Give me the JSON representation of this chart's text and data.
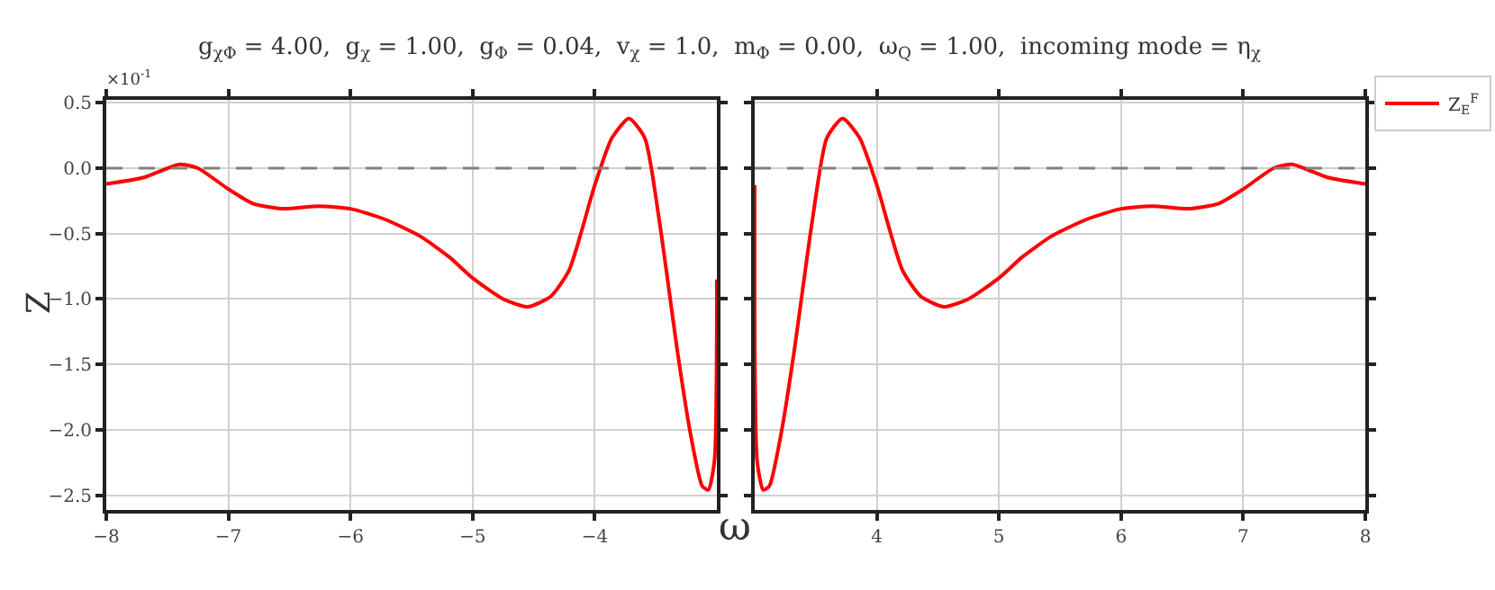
{
  "chart_data": [
    {
      "type": "line",
      "title": "g$_{χΦ}$ = 4.00,  g$_{χ}$ = 1.00,  g$_{Φ}$ = 0.04,  v$_{χ}$ = 1.0,  m$_{Φ}$ = 0.00,  ω$_{Q}$ = 1.00,  incoming mode = η$_{χ}$",
      "xlabel": "ω",
      "ylabel": "Z",
      "annotations": [
        "×10$^{-1}$"
      ],
      "x": [
        -8.0,
        -7.69,
        -7.4,
        -7.25,
        -7.0,
        -6.8,
        -6.55,
        -6.26,
        -6.0,
        -5.72,
        -5.43,
        -5.19,
        -5.0,
        -4.75,
        -4.55,
        -4.36,
        -4.21,
        -4.0,
        -3.86,
        -3.72,
        -3.59,
        -3.47,
        -3.32,
        -3.22,
        -3.12,
        -3.07,
        -3.02,
        -3.0
      ],
      "series": [
        {
          "color": "#ff0000",
          "values": [
            -0.12,
            -0.07,
            0.03,
            0.0,
            -0.16,
            -0.27,
            -0.31,
            -0.29,
            -0.31,
            -0.39,
            -0.52,
            -0.68,
            -0.84,
            -1.0,
            -1.06,
            -0.98,
            -0.78,
            -0.13,
            0.23,
            0.38,
            0.23,
            -0.41,
            -1.42,
            -2.01,
            -2.43,
            -2.46,
            -2.24,
            -0.85
          ]
        }
      ],
      "xlim": [
        -8,
        -3
      ],
      "xticks": [
        -8,
        -7,
        -6,
        -5,
        -4
      ],
      "ylim": [
        -2.61,
        0.52
      ],
      "yticks": [
        {
          "value": 0.5,
          "label": "0.5"
        },
        {
          "value": 0,
          "label": "0.0"
        },
        {
          "value": -0.5,
          "label": "−0.5"
        },
        {
          "value": -1,
          "label": "−1.0"
        },
        {
          "value": -1.5,
          "label": "−1.5"
        },
        {
          "value": -2,
          "label": "−2.0"
        },
        {
          "value": -2.5,
          "label": "−2.5"
        }
      ],
      "ref_lines": [
        {
          "axis": "y",
          "value": 0,
          "color": "#808080",
          "line_style": "dashed"
        }
      ],
      "grid": true,
      "legend": false,
      "line_style": "solid",
      "marker": "none"
    },
    {
      "type": "line",
      "x": [
        3.0,
        3.02,
        3.07,
        3.12,
        3.22,
        3.32,
        3.47,
        3.59,
        3.72,
        3.86,
        4.0,
        4.21,
        4.36,
        4.55,
        4.75,
        5.0,
        5.19,
        5.43,
        5.72,
        6.0,
        6.26,
        6.55,
        6.8,
        7.0,
        7.25,
        7.4,
        7.69,
        8.0
      ],
      "series": [
        {
          "name": "Z$_{E}$$^{F}$",
          "color": "#ff0000",
          "values": [
            -0.13,
            -2.24,
            -2.46,
            -2.43,
            -2.01,
            -1.42,
            -0.41,
            0.23,
            0.38,
            0.23,
            -0.13,
            -0.78,
            -0.98,
            -1.06,
            -1.0,
            -0.84,
            -0.68,
            -0.52,
            -0.39,
            -0.31,
            -0.29,
            -0.31,
            -0.27,
            -0.16,
            0.0,
            0.03,
            -0.07,
            -0.12
          ]
        }
      ],
      "xlim": [
        3,
        8
      ],
      "xticks": [
        4,
        5,
        6,
        7,
        8
      ],
      "ylim": [
        -2.61,
        0.52
      ],
      "yticks": [
        0.5,
        0.0,
        -0.5,
        -1.0,
        -1.5,
        -2.0,
        -2.5
      ],
      "tick_labels": "x",
      "ref_lines": [
        {
          "axis": "y",
          "value": 0,
          "color": "#808080",
          "line_style": "dashed"
        }
      ],
      "grid": true,
      "legend": "top right",
      "line_style": "solid",
      "marker": "none"
    }
  ]
}
